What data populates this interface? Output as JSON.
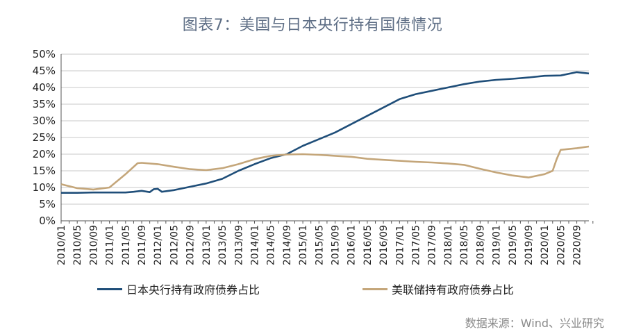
{
  "title": "图表7：美国与日本央行持有国债情况",
  "source": "数据来源：Wind、兴业研究",
  "colors": {
    "boj": "#1f4e79",
    "fed": "#c4a67a",
    "grid": "#c8c8c8",
    "axis": "#555555"
  },
  "chart_data": {
    "type": "line",
    "title": "图表7：美国与日本央行持有国债情况",
    "xlabel": "",
    "ylabel": "",
    "ylim": [
      0,
      50
    ],
    "y_ticks": [
      "0%",
      "5%",
      "10%",
      "15%",
      "20%",
      "25%",
      "30%",
      "35%",
      "40%",
      "45%",
      "50%"
    ],
    "x_tick_labels": [
      "2010/01",
      "2010/05",
      "2010/09",
      "2011/01",
      "2011/05",
      "2011/09",
      "2012/01",
      "2012/05",
      "2012/09",
      "2013/01",
      "2013/05",
      "2013/09",
      "2014/01",
      "2014/05",
      "2014/09",
      "2015/01",
      "2015/05",
      "2015/09",
      "2016/01",
      "2016/05",
      "2016/09",
      "2017/01",
      "2017/05",
      "2017/09",
      "2018/01",
      "2018/05",
      "2018/09",
      "2019/01",
      "2019/05",
      "2019/09",
      "2020/01",
      "2020/05",
      "2020/09"
    ],
    "x_range": [
      "2010/01",
      "2020/12"
    ],
    "grid": true,
    "legend_position": "bottom",
    "series": [
      {
        "name": "日本央行持有政府债券占比",
        "color": "#1f4e79",
        "points": [
          [
            "2010/01",
            8.4
          ],
          [
            "2010/05",
            8.4
          ],
          [
            "2010/09",
            8.5
          ],
          [
            "2011/01",
            8.5
          ],
          [
            "2011/05",
            8.5
          ],
          [
            "2011/07",
            8.7
          ],
          [
            "2011/09",
            9.0
          ],
          [
            "2011/11",
            8.6
          ],
          [
            "2011/12",
            9.5
          ],
          [
            "2012/01",
            9.6
          ],
          [
            "2012/02",
            8.7
          ],
          [
            "2012/05",
            9.2
          ],
          [
            "2012/09",
            10.2
          ],
          [
            "2013/01",
            11.2
          ],
          [
            "2013/05",
            12.6
          ],
          [
            "2013/09",
            15.0
          ],
          [
            "2014/01",
            17.0
          ],
          [
            "2014/05",
            18.8
          ],
          [
            "2014/09",
            20.0
          ],
          [
            "2015/01",
            22.5
          ],
          [
            "2015/05",
            24.5
          ],
          [
            "2015/09",
            26.5
          ],
          [
            "2016/01",
            29.0
          ],
          [
            "2016/05",
            31.5
          ],
          [
            "2016/09",
            34.0
          ],
          [
            "2017/01",
            36.5
          ],
          [
            "2017/05",
            38.0
          ],
          [
            "2017/09",
            39.0
          ],
          [
            "2018/01",
            40.0
          ],
          [
            "2018/05",
            41.0
          ],
          [
            "2018/09",
            41.8
          ],
          [
            "2019/01",
            42.3
          ],
          [
            "2019/05",
            42.6
          ],
          [
            "2019/09",
            43.0
          ],
          [
            "2020/01",
            43.5
          ],
          [
            "2020/05",
            43.6
          ],
          [
            "2020/09",
            44.6
          ],
          [
            "2020/12",
            44.2
          ]
        ]
      },
      {
        "name": "美联储持有政府债券占比",
        "color": "#c4a67a",
        "points": [
          [
            "2010/01",
            11.0
          ],
          [
            "2010/05",
            9.8
          ],
          [
            "2010/09",
            9.4
          ],
          [
            "2011/01",
            10.0
          ],
          [
            "2011/05",
            14.0
          ],
          [
            "2011/08",
            17.3
          ],
          [
            "2011/09",
            17.4
          ],
          [
            "2012/01",
            17.0
          ],
          [
            "2012/05",
            16.2
          ],
          [
            "2012/09",
            15.5
          ],
          [
            "2013/01",
            15.2
          ],
          [
            "2013/05",
            15.8
          ],
          [
            "2013/09",
            17.0
          ],
          [
            "2014/01",
            18.5
          ],
          [
            "2014/05",
            19.5
          ],
          [
            "2014/09",
            19.9
          ],
          [
            "2015/01",
            20.0
          ],
          [
            "2015/05",
            19.8
          ],
          [
            "2015/09",
            19.5
          ],
          [
            "2016/01",
            19.2
          ],
          [
            "2016/05",
            18.6
          ],
          [
            "2016/09",
            18.3
          ],
          [
            "2017/01",
            18.0
          ],
          [
            "2017/05",
            17.7
          ],
          [
            "2017/09",
            17.5
          ],
          [
            "2018/01",
            17.2
          ],
          [
            "2018/05",
            16.8
          ],
          [
            "2018/09",
            15.6
          ],
          [
            "2019/01",
            14.5
          ],
          [
            "2019/05",
            13.6
          ],
          [
            "2019/09",
            13.0
          ],
          [
            "2020/01",
            14.0
          ],
          [
            "2020/03",
            15.0
          ],
          [
            "2020/04",
            18.5
          ],
          [
            "2020/05",
            21.3
          ],
          [
            "2020/09",
            21.8
          ],
          [
            "2020/12",
            22.3
          ]
        ]
      }
    ]
  }
}
